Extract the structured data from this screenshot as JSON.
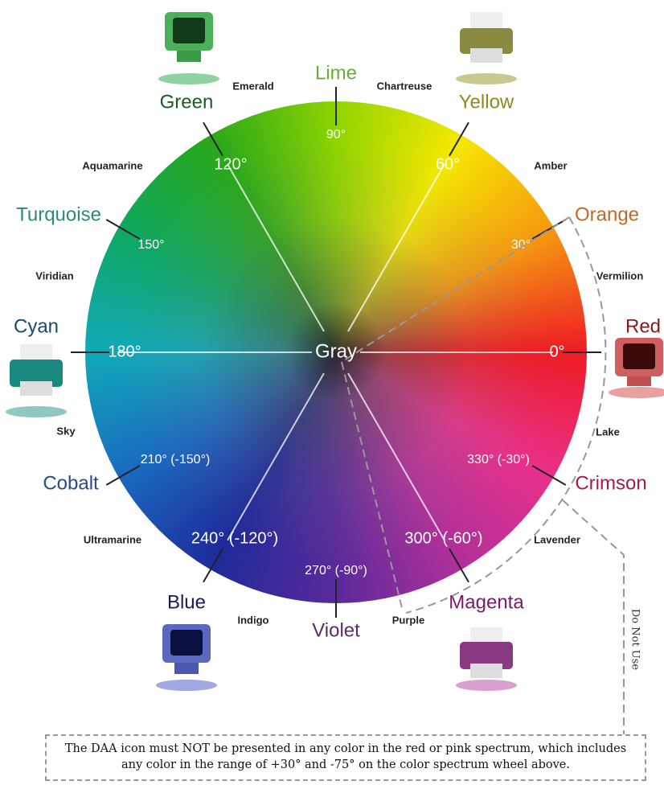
{
  "center_label": "Gray",
  "major_labels": [
    "Red",
    "Orange",
    "Yellow",
    "Lime",
    "Green",
    "Turquoise",
    "Cyan",
    "Cobalt",
    "Blue",
    "Violet",
    "Magenta",
    "Crimson"
  ],
  "minor_labels": [
    "Vermilion",
    "Amber",
    "Chartreuse",
    "Emerald",
    "Aquamarine",
    "Viridian",
    "Sky",
    "Ultramarine",
    "Indigo",
    "Purple",
    "Lavender",
    "Lake"
  ],
  "degree_labels": [
    "0°",
    "30°",
    "60°",
    "90°",
    "120°",
    "150°",
    "180°",
    "210° (-150°)",
    "240° (-120°)",
    "270° (-90°)",
    "300° (-60°)",
    "330° (-30°)"
  ],
  "side_note": "Do Not Use",
  "footer_note": "The DAA icon must NOT be presented in any color in the red or pink spectrum, which includes any color in the range of +30° and -75° on the color spectrum wheel above."
}
